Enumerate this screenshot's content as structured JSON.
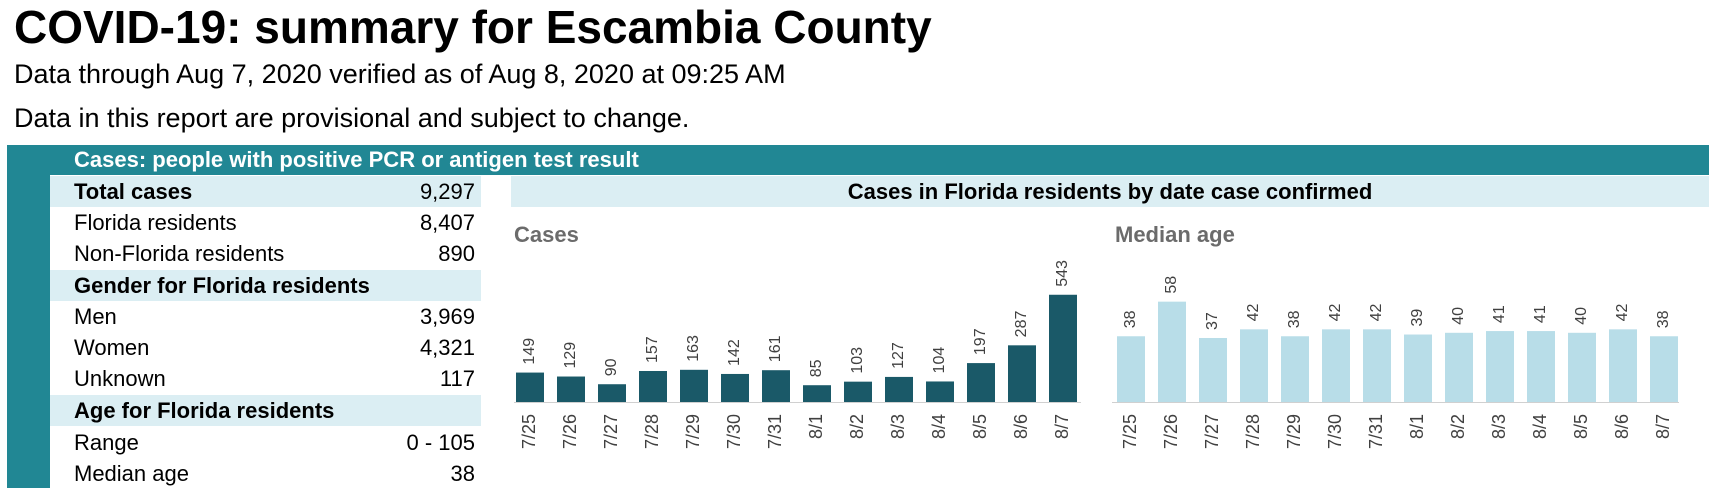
{
  "header": {
    "title": "COVID-19: summary for Escambia County",
    "subtitle": "Data through Aug 7, 2020 verified as of Aug 8, 2020 at 09:25 AM",
    "note": "Data in this report are provisional and subject to change."
  },
  "cases_section": {
    "heading": "Cases: people with positive PCR or antigen test result",
    "total": {
      "label": "Total cases",
      "value": "9,297"
    },
    "florida": {
      "label": "Florida residents",
      "value": "8,407"
    },
    "non_florida": {
      "label": "Non-Florida residents",
      "value": "890"
    },
    "gender_heading": "Gender for Florida residents",
    "men": {
      "label": "Men",
      "value": "3,969"
    },
    "women": {
      "label": "Women",
      "value": "4,321"
    },
    "unknown": {
      "label": "Unknown",
      "value": "117"
    },
    "age_heading": "Age for Florida residents",
    "range": {
      "label": "Range",
      "value": "0 - 105"
    },
    "median": {
      "label": "Median age",
      "value": "38"
    }
  },
  "chart_header": "Cases in Florida residents by date case confirmed",
  "colors": {
    "teal": "#218794",
    "dark_bar": "#1a5968",
    "light_bar": "#b8dde8",
    "highlight": "#dbeef3"
  },
  "chart_data": [
    {
      "type": "bar",
      "title": "Cases",
      "categories": [
        "7/25",
        "7/26",
        "7/27",
        "7/28",
        "7/29",
        "7/30",
        "7/31",
        "8/1",
        "8/2",
        "8/3",
        "8/4",
        "8/5",
        "8/6",
        "8/7"
      ],
      "values": [
        149,
        129,
        90,
        157,
        163,
        142,
        161,
        85,
        103,
        127,
        104,
        197,
        287,
        543
      ],
      "data_labels": true,
      "grid": false
    },
    {
      "type": "bar",
      "title": "Median age",
      "categories": [
        "7/25",
        "7/26",
        "7/27",
        "7/28",
        "7/29",
        "7/30",
        "7/31",
        "8/1",
        "8/2",
        "8/3",
        "8/4",
        "8/5",
        "8/6",
        "8/7"
      ],
      "values": [
        38,
        58,
        37,
        42,
        38,
        42,
        42,
        39,
        40,
        41,
        41,
        40,
        42,
        38
      ],
      "data_labels": true,
      "grid": false
    }
  ]
}
